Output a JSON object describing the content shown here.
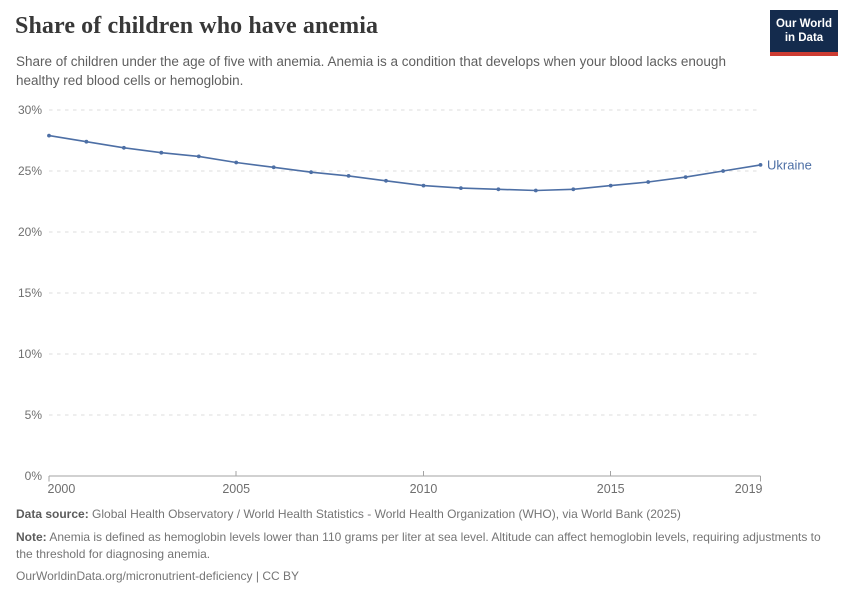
{
  "header": {
    "title": "Share of children who have anemia",
    "subtitle": "Share of children under the age of five with anemia. Anemia is a condition that develops when your blood lacks enough healthy red blood cells or hemoglobin."
  },
  "logo": {
    "line1": "Our World",
    "line2": "in Data",
    "bg_color": "#142b4d",
    "bar_color": "#cd3c32"
  },
  "chart_data": {
    "type": "line",
    "title": "Share of children who have anemia",
    "x": [
      2000,
      2001,
      2002,
      2003,
      2004,
      2005,
      2006,
      2007,
      2008,
      2009,
      2010,
      2011,
      2012,
      2013,
      2014,
      2015,
      2016,
      2017,
      2018,
      2019
    ],
    "series": [
      {
        "name": "Ukraine",
        "color": "#4d6fa5",
        "values": [
          27.9,
          27.4,
          26.9,
          26.5,
          26.2,
          25.7,
          25.3,
          24.9,
          24.6,
          24.2,
          23.8,
          23.6,
          23.5,
          23.4,
          23.5,
          23.8,
          24.1,
          24.5,
          25.0,
          25.5
        ]
      }
    ],
    "xlabel": "",
    "ylabel": "",
    "ylim": [
      0,
      30
    ],
    "yticks": [
      0,
      5,
      10,
      15,
      20,
      25,
      30
    ],
    "ytick_suffix": "%",
    "xticks": [
      2000,
      2005,
      2010,
      2015,
      2019
    ],
    "grid": "horizontal-dashed",
    "legend_position": "end-of-line",
    "gridline_color": "#dcdcdc",
    "axis_color": "#a3a3a3",
    "tick_label_color": "#6f6f6f"
  },
  "footer": {
    "datasource_label": "Data source:",
    "datasource_text": "Global Health Observatory / World Health Statistics - World Health Organization (WHO), via World Bank (2025)",
    "note_label": "Note:",
    "note_text": "Anemia is defined as hemoglobin levels lower than 110 grams per liter at sea level. Altitude can affect hemoglobin levels, requiring adjustments to the threshold for diagnosing anemia.",
    "citation": "OurWorldinData.org/micronutrient-deficiency | CC BY"
  }
}
